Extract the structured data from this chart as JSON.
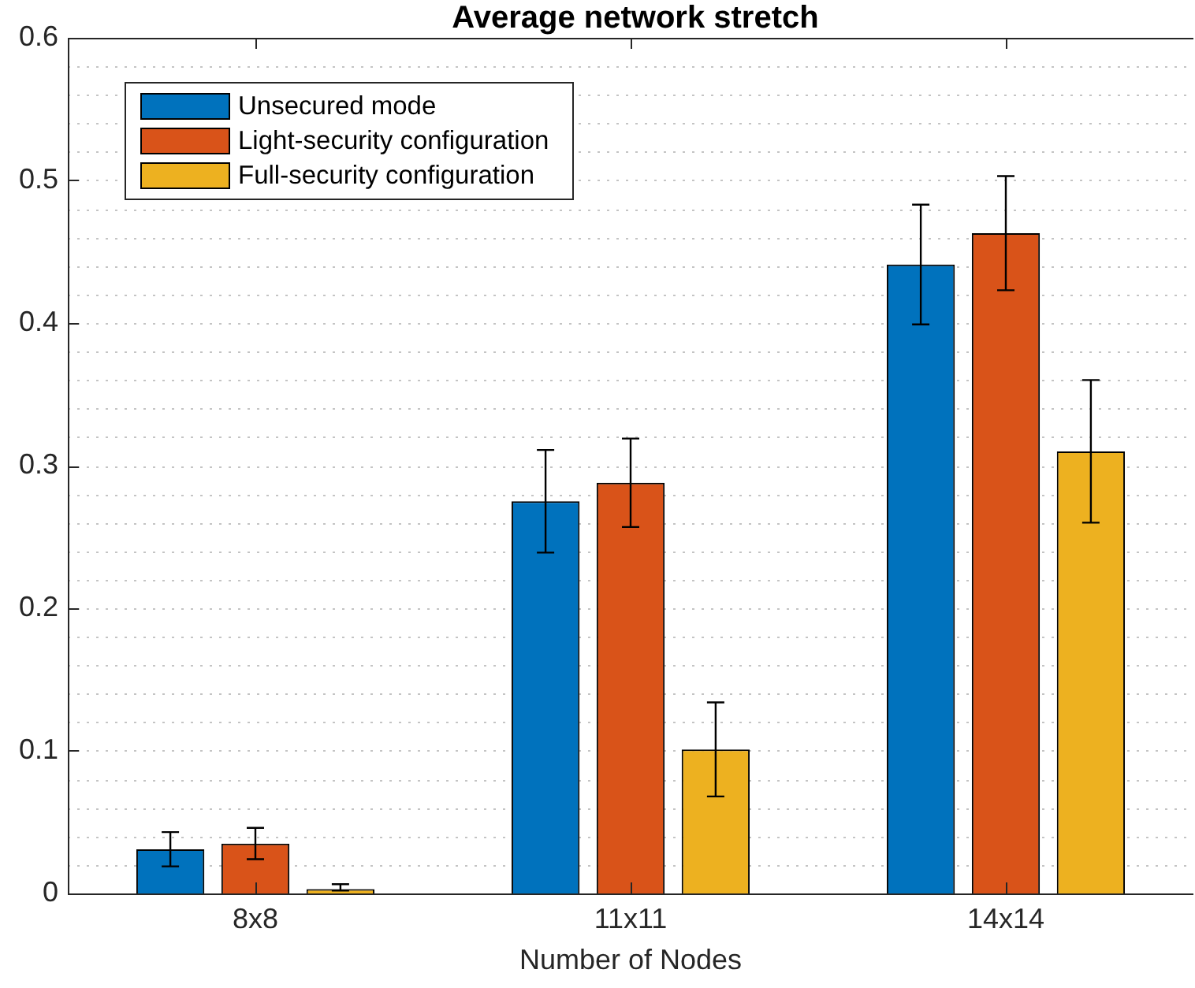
{
  "chart_data": {
    "type": "bar",
    "title": "Average network stretch",
    "xlabel": "Number of Nodes",
    "categories": [
      "8x8",
      "11x11",
      "14x14"
    ],
    "series": [
      {
        "name": "Unsecured mode",
        "color": "#0072bd",
        "values": [
          0.031,
          0.275,
          0.441
        ],
        "errors": [
          0.012,
          0.036,
          0.042
        ]
      },
      {
        "name": "Light-security configuration",
        "color": "#d95319",
        "values": [
          0.035,
          0.288,
          0.463
        ],
        "errors": [
          0.011,
          0.031,
          0.04
        ]
      },
      {
        "name": "Full-security configuration",
        "color": "#edb120",
        "values": [
          0.003,
          0.101,
          0.31
        ],
        "errors": [
          [
            0.002,
            0.0065
          ],
          0.033,
          0.05
        ]
      }
    ],
    "ylim": [
      0,
      0.6
    ],
    "yticks": [
      0,
      0.1,
      0.2,
      0.3,
      0.4,
      0.5,
      0.6
    ],
    "grid": "y",
    "legend": "top left"
  }
}
